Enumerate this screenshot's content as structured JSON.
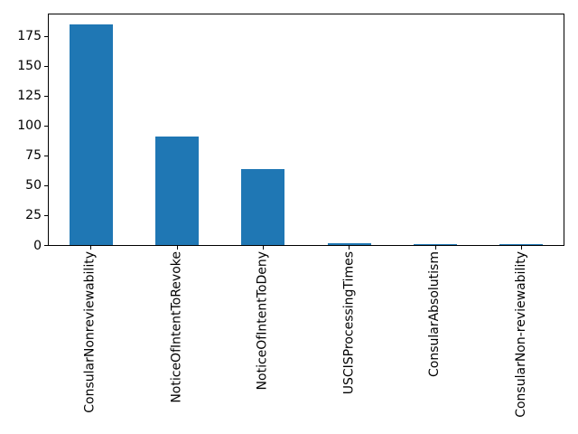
{
  "figure": {
    "background": "#ffffff"
  },
  "chart_data": {
    "type": "bar",
    "title": "",
    "xlabel": "",
    "ylabel": "",
    "categories": [
      "ConsularNonreviewability",
      "NoticeOfIntentToRevoke",
      "NoticeOfIntentToDeny",
      "USCISProcessingTimes",
      "ConsularAbsolutism",
      "ConsularNon-reviewability"
    ],
    "values": [
      185,
      91,
      64,
      2,
      1,
      1
    ],
    "yticks": [
      0,
      25,
      50,
      75,
      100,
      125,
      150,
      175
    ],
    "ylim": [
      0,
      194
    ],
    "x_tick_rotation": 90,
    "grid": false,
    "legend": "none",
    "bar_color": "#1f77b4",
    "axis_color": "#000000",
    "text_color": "#000000"
  }
}
